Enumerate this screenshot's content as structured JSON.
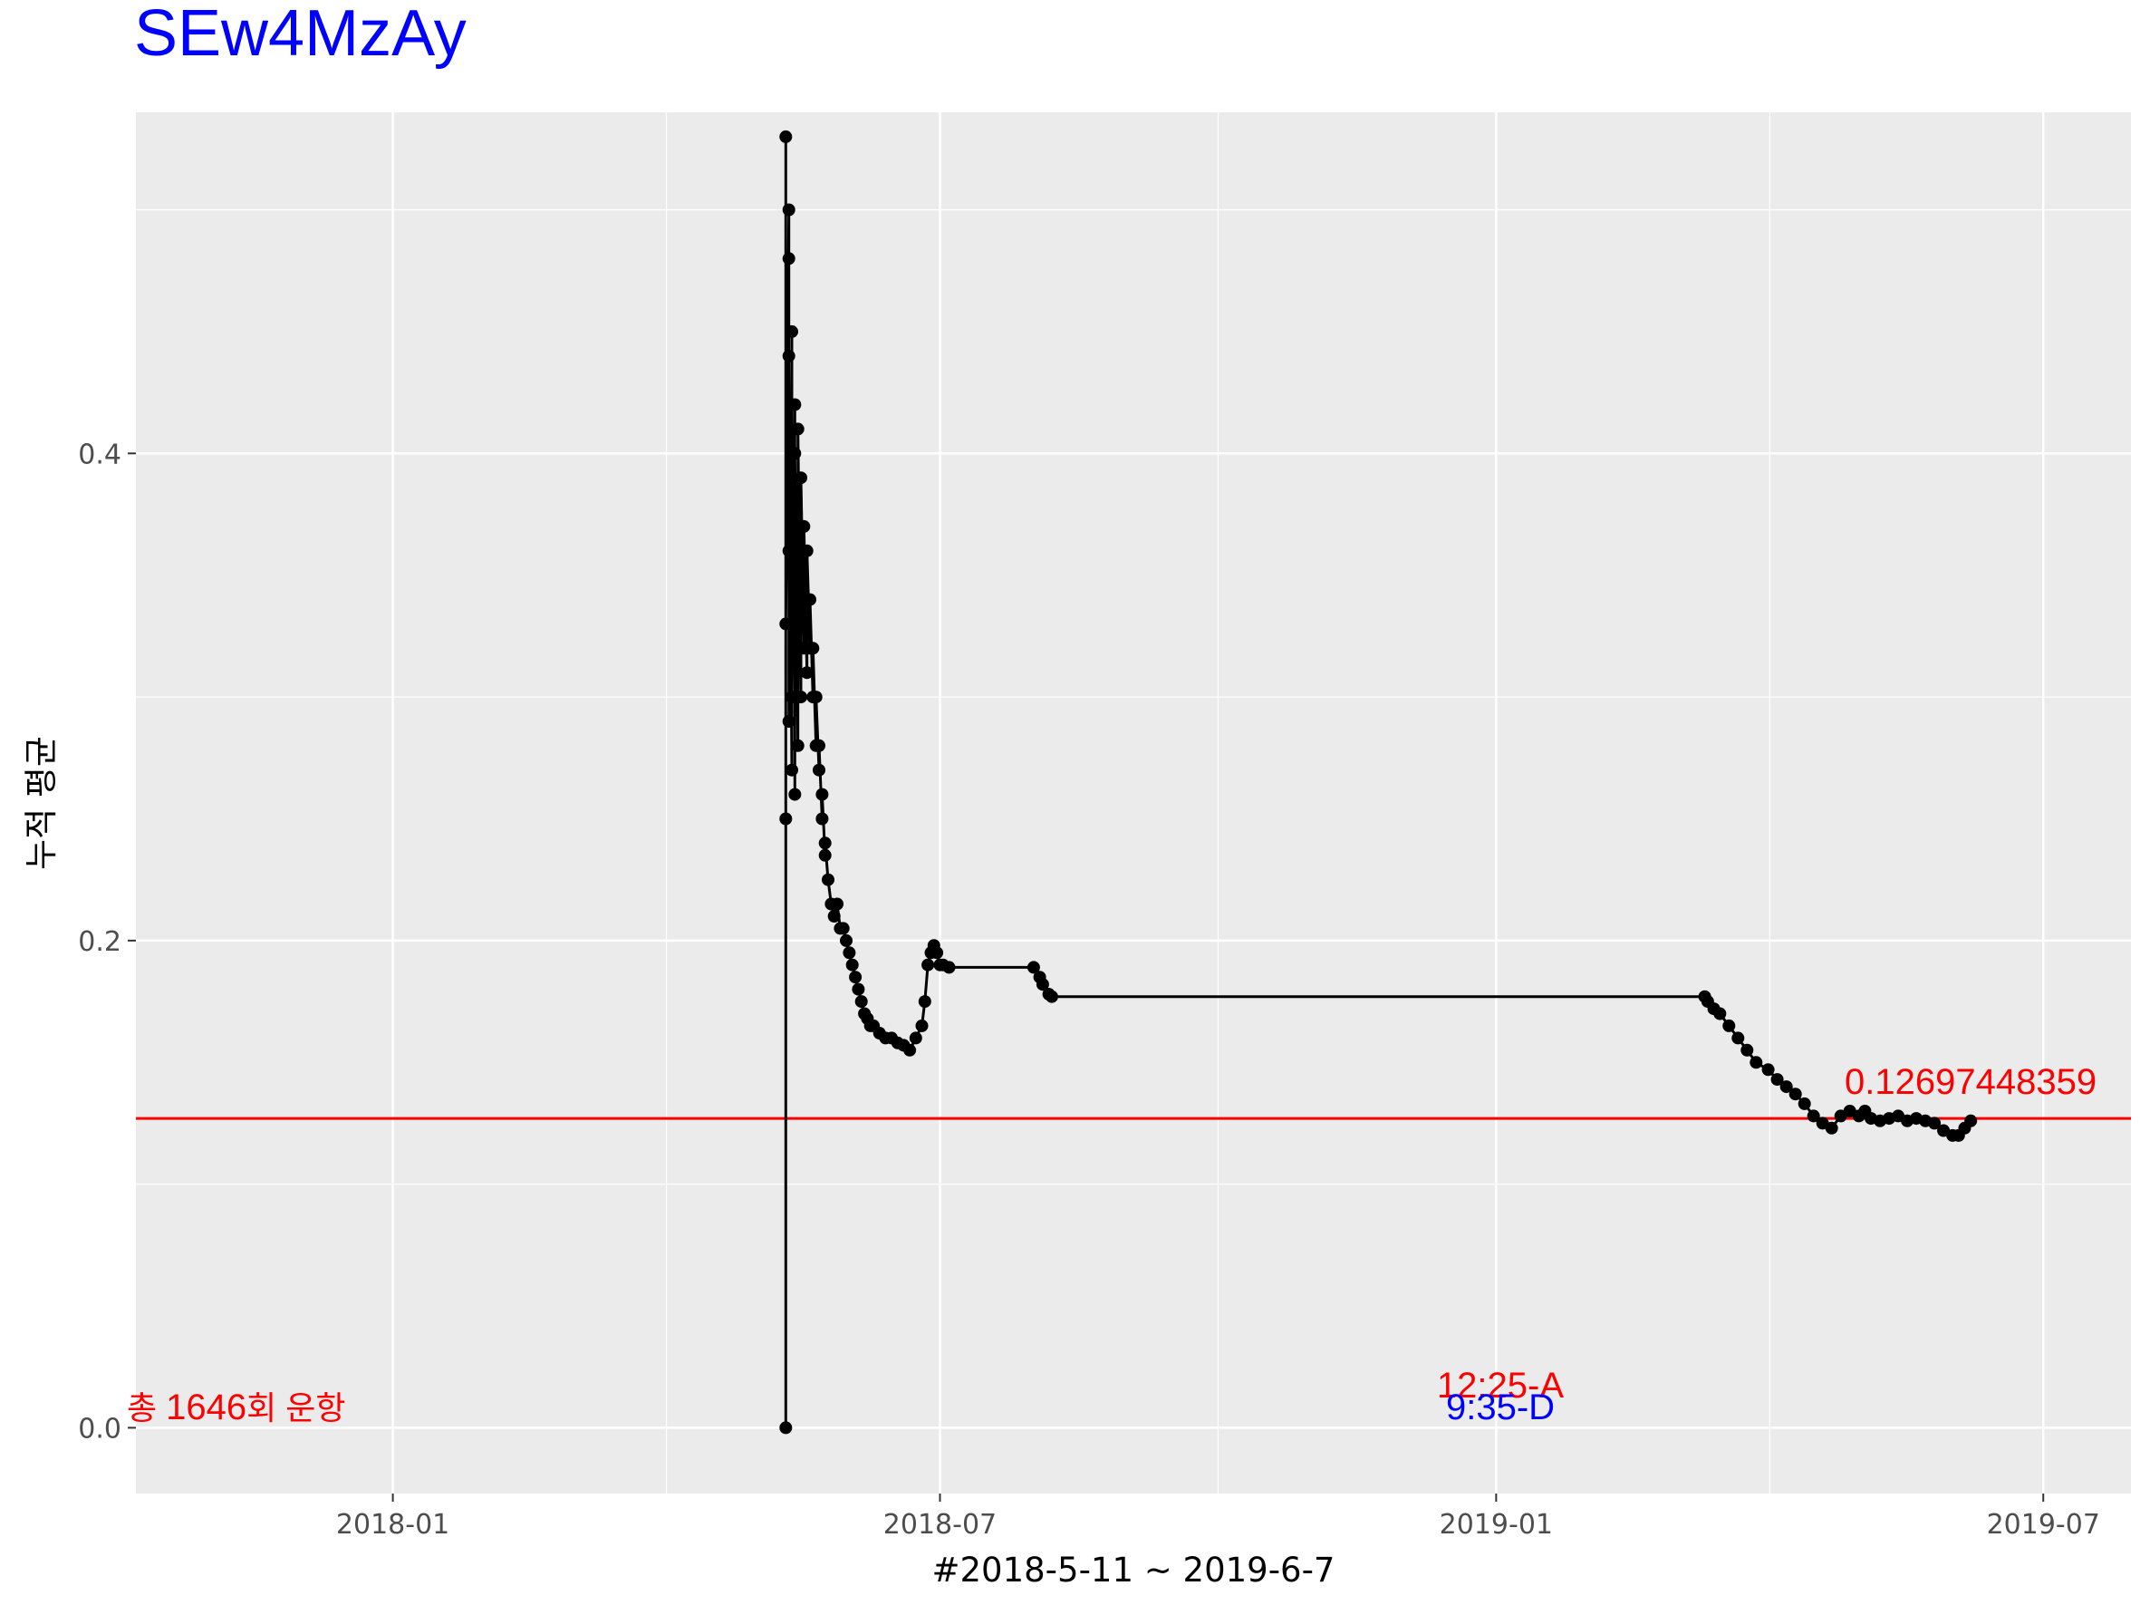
{
  "chart_data": {
    "type": "line",
    "title": "SEw4MzAy",
    "xlabel": "#2018-5-11 ~ 2019-6-7",
    "ylabel": "누적 평균",
    "x_ticks": [
      "2018-01",
      "2018-07",
      "2019-01",
      "2019-07"
    ],
    "y_ticks": [
      "0.0",
      "0.2",
      "0.4"
    ],
    "ylim": [
      -0.027,
      0.54
    ],
    "xlim": [
      "2017-10-08",
      "2019-07-30"
    ],
    "grid": true,
    "reference_line": {
      "value": 0.1269744836,
      "label": "0.12697448359",
      "color": "#ff0000"
    },
    "annotations": {
      "total_prefix": "총 ",
      "total_count": "1646",
      "total_suffix": "회 운항",
      "time_a": "12:25-A",
      "time_d": "9:35-D"
    },
    "colors": {
      "panel": "#ebebeb",
      "grid": "#ffffff",
      "line": "#000000",
      "accent_red": "#ff0000",
      "accent_blue": "#0000ff"
    },
    "series": [
      {
        "x": [
          "2018-05-11",
          "2018-05-11",
          "2018-05-11",
          "2018-05-11",
          "2018-05-12",
          "2018-05-12",
          "2018-05-12",
          "2018-05-12",
          "2018-05-12",
          "2018-05-13",
          "2018-05-13",
          "2018-05-13",
          "2018-05-14",
          "2018-05-14",
          "2018-05-14",
          "2018-05-15",
          "2018-05-15",
          "2018-05-16",
          "2018-05-16",
          "2018-05-17",
          "2018-05-17",
          "2018-05-18",
          "2018-05-18",
          "2018-05-19",
          "2018-05-19",
          "2018-05-20",
          "2018-05-20",
          "2018-05-21",
          "2018-05-21",
          "2018-05-22",
          "2018-05-22",
          "2018-05-23",
          "2018-05-23",
          "2018-05-24",
          "2018-05-24",
          "2018-05-25",
          "2018-05-26",
          "2018-05-27",
          "2018-05-28",
          "2018-05-29",
          "2018-05-30",
          "2018-05-31",
          "2018-06-01",
          "2018-06-02",
          "2018-06-03",
          "2018-06-04",
          "2018-06-05",
          "2018-06-06",
          "2018-06-07",
          "2018-06-08",
          "2018-06-09",
          "2018-06-11",
          "2018-06-13",
          "2018-06-15",
          "2018-06-17",
          "2018-06-19",
          "2018-06-21",
          "2018-06-23",
          "2018-06-25",
          "2018-06-26",
          "2018-06-27",
          "2018-06-28",
          "2018-06-29",
          "2018-06-30",
          "2018-07-01",
          "2018-07-02",
          "2018-07-04",
          "2018-08-01",
          "2018-08-03",
          "2018-08-04",
          "2018-08-06",
          "2018-08-07",
          "2019-03-11",
          "2019-03-12",
          "2019-03-14",
          "2019-03-16",
          "2019-03-19",
          "2019-03-22",
          "2019-03-25",
          "2019-03-28",
          "2019-04-01",
          "2019-04-04",
          "2019-04-07",
          "2019-04-10",
          "2019-04-13",
          "2019-04-16",
          "2019-04-19",
          "2019-04-22",
          "2019-04-25",
          "2019-04-28",
          "2019-05-01",
          "2019-05-03",
          "2019-05-05",
          "2019-05-08",
          "2019-05-11",
          "2019-05-14",
          "2019-05-17",
          "2019-05-20",
          "2019-05-23",
          "2019-05-26",
          "2019-05-29",
          "2019-06-01",
          "2019-06-03",
          "2019-06-05",
          "2019-06-07"
        ],
        "y": [
          0.0,
          0.25,
          0.53,
          0.33,
          0.5,
          0.36,
          0.48,
          0.29,
          0.44,
          0.27,
          0.45,
          0.3,
          0.42,
          0.26,
          0.4,
          0.28,
          0.41,
          0.3,
          0.39,
          0.32,
          0.37,
          0.31,
          0.36,
          0.32,
          0.34,
          0.3,
          0.32,
          0.28,
          0.3,
          0.27,
          0.28,
          0.25,
          0.26,
          0.235,
          0.24,
          0.225,
          0.215,
          0.21,
          0.215,
          0.205,
          0.205,
          0.2,
          0.195,
          0.19,
          0.185,
          0.18,
          0.175,
          0.17,
          0.168,
          0.165,
          0.165,
          0.162,
          0.16,
          0.16,
          0.158,
          0.157,
          0.155,
          0.16,
          0.165,
          0.175,
          0.19,
          0.195,
          0.198,
          0.195,
          0.19,
          0.19,
          0.189,
          0.189,
          0.185,
          0.182,
          0.178,
          0.177,
          0.177,
          0.175,
          0.172,
          0.17,
          0.165,
          0.16,
          0.155,
          0.15,
          0.147,
          0.143,
          0.14,
          0.137,
          0.133,
          0.128,
          0.125,
          0.123,
          0.128,
          0.13,
          0.128,
          0.13,
          0.127,
          0.126,
          0.127,
          0.128,
          0.126,
          0.127,
          0.126,
          0.125,
          0.122,
          0.12,
          0.12,
          0.123,
          0.126
        ]
      }
    ]
  }
}
